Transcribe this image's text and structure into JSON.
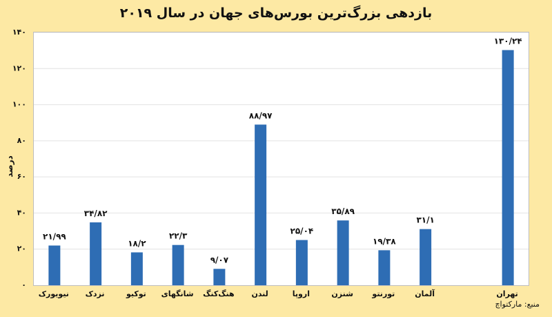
{
  "chart_data": {
    "type": "bar",
    "title": "بازدهی بزرگ‌ترین بورس‌های جهان در سال ۲۰۱۹",
    "ylabel": "درصد",
    "xlabel": "",
    "ylim": [
      0,
      140
    ],
    "yticks": [
      0,
      20,
      40,
      60,
      80,
      100,
      120,
      140
    ],
    "ytick_labels": [
      "۰",
      "۲۰",
      "۴۰",
      "۶۰",
      "۸۰",
      "۱۰۰",
      "۱۲۰",
      "۱۴۰"
    ],
    "categories": [
      "نیویورک",
      "نزدک",
      "توکیو",
      "شانگهای",
      "هنگ‌کنگ",
      "لندن",
      "اروپا",
      "شنزن",
      "تورنتو",
      "آلمان",
      "",
      "تهران"
    ],
    "values": [
      21.99,
      34.82,
      18.2,
      22.3,
      9.07,
      88.97,
      25.04,
      35.89,
      19.38,
      31.1,
      null,
      130.24
    ],
    "data_labels": [
      "۲۱/۹۹",
      "۳۴/۸۲",
      "۱۸/۲",
      "۲۲/۳",
      "۹/۰۷",
      "۸۸/۹۷",
      "۲۵/۰۴",
      "۳۵/۸۹",
      "۱۹/۳۸",
      "۳۱/۱",
      "",
      "۱۳۰/۲۴"
    ],
    "bar_color": "#2e6db4",
    "grid": "horizontal",
    "legend": "none"
  },
  "source": "منبع: مارکتواچ"
}
